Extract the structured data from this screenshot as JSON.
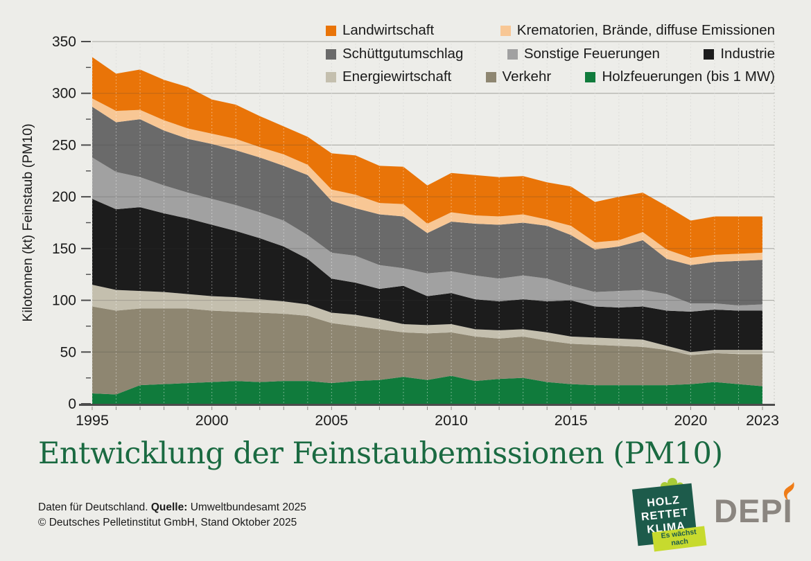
{
  "page": {
    "background_color": "#edede9",
    "title_color": "#1a6a41",
    "text_color": "#1a1a1a"
  },
  "footer": {
    "line1_prefix": "Daten für Deutschland. ",
    "line1_bold": "Quelle:",
    "line1_suffix": " Umweltbundesamt 2025",
    "line2": "© Deutsches Pelletinstitut GmbH, Stand Oktober 2025"
  },
  "logos": {
    "hrk": {
      "line1": "HOLZ",
      "line2": "RETTET",
      "line3": "KLIMA",
      "ribbon_line1": "Es wächst",
      "ribbon_line2": "nach",
      "square_color": "#1d5b4b",
      "ribbon_color": "#c7da2e",
      "tree_color": "#a9cb38",
      "ribbon_text_color": "#1d5b4b"
    },
    "depi": {
      "text": "DEPI",
      "text_color": "#8b8680",
      "flame_color": "#ef7c17"
    }
  },
  "chart_data": {
    "type": "area",
    "stacked": true,
    "title": "Entwicklung der Feinstaubemissionen (PM10)",
    "ylabel": "Kilotonnen (kt) Feinstaub (PM10)",
    "units": "kt",
    "ylim": [
      0,
      350
    ],
    "y_ticks": [
      0,
      50,
      100,
      150,
      200,
      250,
      300,
      350
    ],
    "y_minor_tick_step": 25,
    "x_tick_labels": [
      "1995",
      "2000",
      "2005",
      "2010",
      "2015",
      "2020",
      "2023"
    ],
    "grid": "horizontal solid lines at 50kt steps, vertical dotted lines per year",
    "legend_position": "top-right, three rows",
    "x": [
      1995,
      1996,
      1997,
      1998,
      1999,
      2000,
      2001,
      2002,
      2003,
      2004,
      2005,
      2006,
      2007,
      2008,
      2009,
      2010,
      2011,
      2012,
      2013,
      2014,
      2015,
      2016,
      2017,
      2018,
      2019,
      2020,
      2021,
      2022,
      2023
    ],
    "series": [
      {
        "name": "Holzfeuerungen (bis 1 MW)",
        "color": "#107b3c",
        "values": [
          10,
          9,
          18,
          19,
          20,
          21,
          22,
          21,
          22,
          22,
          20,
          22,
          23,
          26,
          23,
          27,
          22,
          24,
          25,
          21,
          19,
          18,
          18,
          18,
          18,
          19,
          21,
          19,
          17
        ]
      },
      {
        "name": "Verkehr",
        "color": "#8e8671",
        "values": [
          84,
          81,
          74,
          73,
          72,
          69,
          67,
          67,
          65,
          63,
          58,
          53,
          49,
          43,
          45,
          42,
          43,
          39,
          40,
          40,
          39,
          39,
          38,
          37,
          34,
          28,
          28,
          29,
          31
        ]
      },
      {
        "name": "Energiewirtschaft",
        "color": "#c4bfae",
        "values": [
          21,
          20,
          17,
          16,
          14,
          14,
          14,
          13,
          12,
          11,
          10,
          11,
          10,
          8,
          8,
          8,
          7,
          8,
          7,
          8,
          7,
          7,
          7,
          7,
          4,
          3,
          3,
          4,
          4
        ]
      },
      {
        "name": "Industrie",
        "color": "#1c1c1c",
        "values": [
          83,
          78,
          81,
          76,
          73,
          69,
          64,
          59,
          53,
          44,
          33,
          31,
          29,
          37,
          28,
          30,
          29,
          28,
          29,
          30,
          35,
          30,
          30,
          32,
          34,
          39,
          39,
          38,
          38
        ]
      },
      {
        "name": "Sonstige Feuerungen",
        "color": "#a1a1a1",
        "values": [
          40,
          36,
          29,
          27,
          25,
          25,
          25,
          25,
          25,
          23,
          25,
          26,
          23,
          17,
          22,
          21,
          23,
          22,
          23,
          22,
          14,
          14,
          16,
          16,
          16,
          8,
          6,
          5,
          6
        ]
      },
      {
        "name": "Schüttgutumschlag",
        "color": "#6a6a6a",
        "values": [
          49,
          48,
          56,
          53,
          52,
          53,
          53,
          53,
          53,
          58,
          50,
          46,
          49,
          50,
          39,
          48,
          50,
          52,
          51,
          51,
          49,
          41,
          43,
          48,
          34,
          37,
          40,
          43,
          43
        ]
      },
      {
        "name": "Krematorien, Brände, diffuse Emissionen",
        "color": "#f8c795",
        "values": [
          8,
          11,
          9,
          10,
          10,
          10,
          11,
          10,
          11,
          10,
          11,
          13,
          11,
          12,
          9,
          9,
          8,
          8,
          8,
          6,
          9,
          7,
          6,
          8,
          9,
          7,
          7,
          7,
          7
        ]
      },
      {
        "name": "Landwirtschaft",
        "color": "#e97408",
        "values": [
          40,
          36,
          39,
          39,
          40,
          33,
          33,
          30,
          27,
          27,
          35,
          38,
          36,
          36,
          37,
          38,
          39,
          38,
          37,
          36,
          38,
          39,
          42,
          38,
          42,
          36,
          37,
          36,
          35
        ]
      }
    ],
    "legend_rows": [
      [
        7,
        6
      ],
      [
        5,
        4,
        3
      ],
      [
        2,
        1,
        0
      ]
    ]
  }
}
